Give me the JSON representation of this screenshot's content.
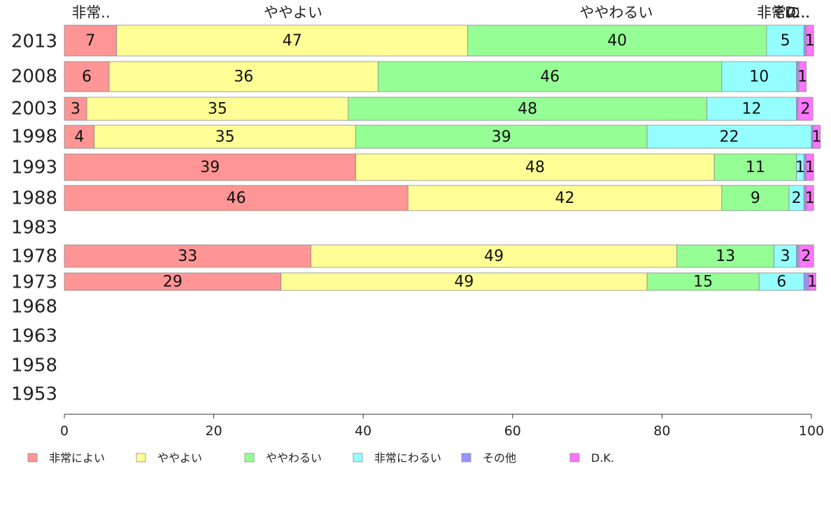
{
  "chart_data": {
    "type": "bar",
    "orientation": "horizontal",
    "stacked": true,
    "categories": [
      "2013",
      "2008",
      "2003",
      "1998",
      "1993",
      "1988",
      "1983",
      "1978",
      "1973",
      "1968",
      "1963",
      "1958",
      "1953"
    ],
    "series": [
      {
        "name": "非常によい",
        "color": "#ff9595",
        "values": [
          7,
          6,
          3,
          4,
          39,
          46,
          null,
          33,
          29,
          null,
          null,
          null,
          null
        ]
      },
      {
        "name": "ややよい",
        "color": "#ffff95",
        "values": [
          47,
          36,
          35,
          35,
          48,
          42,
          null,
          49,
          49,
          null,
          null,
          null,
          null
        ]
      },
      {
        "name": "ややわるい",
        "color": "#95ff95",
        "values": [
          40,
          46,
          48,
          39,
          11,
          9,
          null,
          13,
          15,
          null,
          null,
          null,
          null
        ]
      },
      {
        "name": "非常にわるい",
        "color": "#95ffff",
        "values": [
          5,
          10,
          12,
          22,
          1,
          2,
          null,
          3,
          6,
          null,
          null,
          null,
          null
        ]
      },
      {
        "name": "その他",
        "color": "#9595ff",
        "values": [
          0.3,
          0.3,
          0.2,
          0.2,
          0.3,
          0.3,
          null,
          0.3,
          0.6,
          null,
          null,
          null,
          null
        ]
      },
      {
        "name": "D.K.",
        "color": "#ff75ff",
        "values": [
          1,
          1,
          2,
          1,
          1,
          1,
          null,
          2,
          1,
          null,
          null,
          null,
          null
        ]
      }
    ],
    "top_labels": [
      "非常..",
      "ややよい",
      "ややわるい",
      "非常に..",
      "その..",
      "D..."
    ],
    "xlim": [
      0,
      100
    ],
    "xticks": [
      "0",
      "20",
      "40",
      "60",
      "80",
      "100"
    ],
    "legend_position": "bottom",
    "grid": false
  }
}
